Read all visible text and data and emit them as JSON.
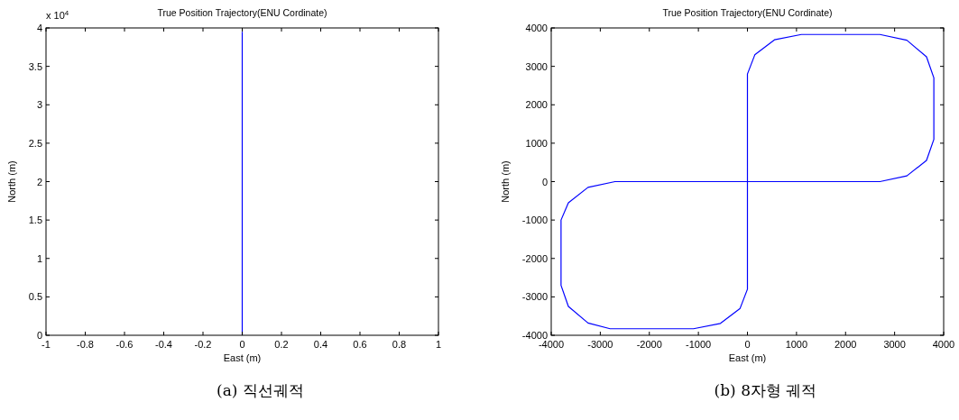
{
  "chart_data": [
    {
      "type": "line",
      "title": "True Position Trajectory(ENU Cordinate)",
      "xlabel": "East (m)",
      "ylabel": "North (m)",
      "series": [
        {
          "color": "#0000ff",
          "x": [
            0,
            0
          ],
          "values": [
            0,
            3.95
          ]
        }
      ],
      "xlim": [
        -1,
        1
      ],
      "xticks": [
        -1,
        -0.8,
        -0.6,
        -0.4,
        -0.2,
        0,
        0.2,
        0.4,
        0.6,
        0.8,
        1
      ],
      "ylim": [
        0,
        4
      ],
      "yticks": [
        0,
        0.5,
        1,
        1.5,
        2,
        2.5,
        3,
        3.5,
        4
      ],
      "annotations": [
        "x 10$^{4}$",
        "(a) 직선궤적"
      ]
    },
    {
      "type": "line",
      "title": "True Position Trajectory(ENU Cordinate)",
      "xlabel": "East (m)",
      "ylabel": "North (m)",
      "series": [
        {
          "color": "#0000ff",
          "x": [
            -2700,
            2700,
            3250,
            3650,
            3800,
            3800,
            3650,
            3250,
            2700,
            1100,
            550,
            150,
            0,
            0,
            -150,
            -550,
            -1100,
            -2800,
            -3250,
            -3650,
            -3800,
            -3800,
            -3650,
            -3250,
            -2700,
            0
          ],
          "values": [
            0,
            0,
            150,
            550,
            1100,
            2700,
            3250,
            3680,
            3830,
            3830,
            3690,
            3300,
            2800,
            -2800,
            -3300,
            -3690,
            -3830,
            -3830,
            -3680,
            -3250,
            -2700,
            -1000,
            -550,
            -150,
            0,
            0
          ]
        }
      ],
      "xlim": [
        -4000,
        4000
      ],
      "xticks": [
        -4000,
        -3000,
        -2000,
        -1000,
        0,
        1000,
        2000,
        3000,
        4000
      ],
      "ylim": [
        -4000,
        4000
      ],
      "yticks": [
        -4000,
        -3000,
        -2000,
        -1000,
        0,
        1000,
        2000,
        3000,
        4000
      ],
      "annotations": [
        "(b) 8자형 궤적"
      ]
    }
  ]
}
